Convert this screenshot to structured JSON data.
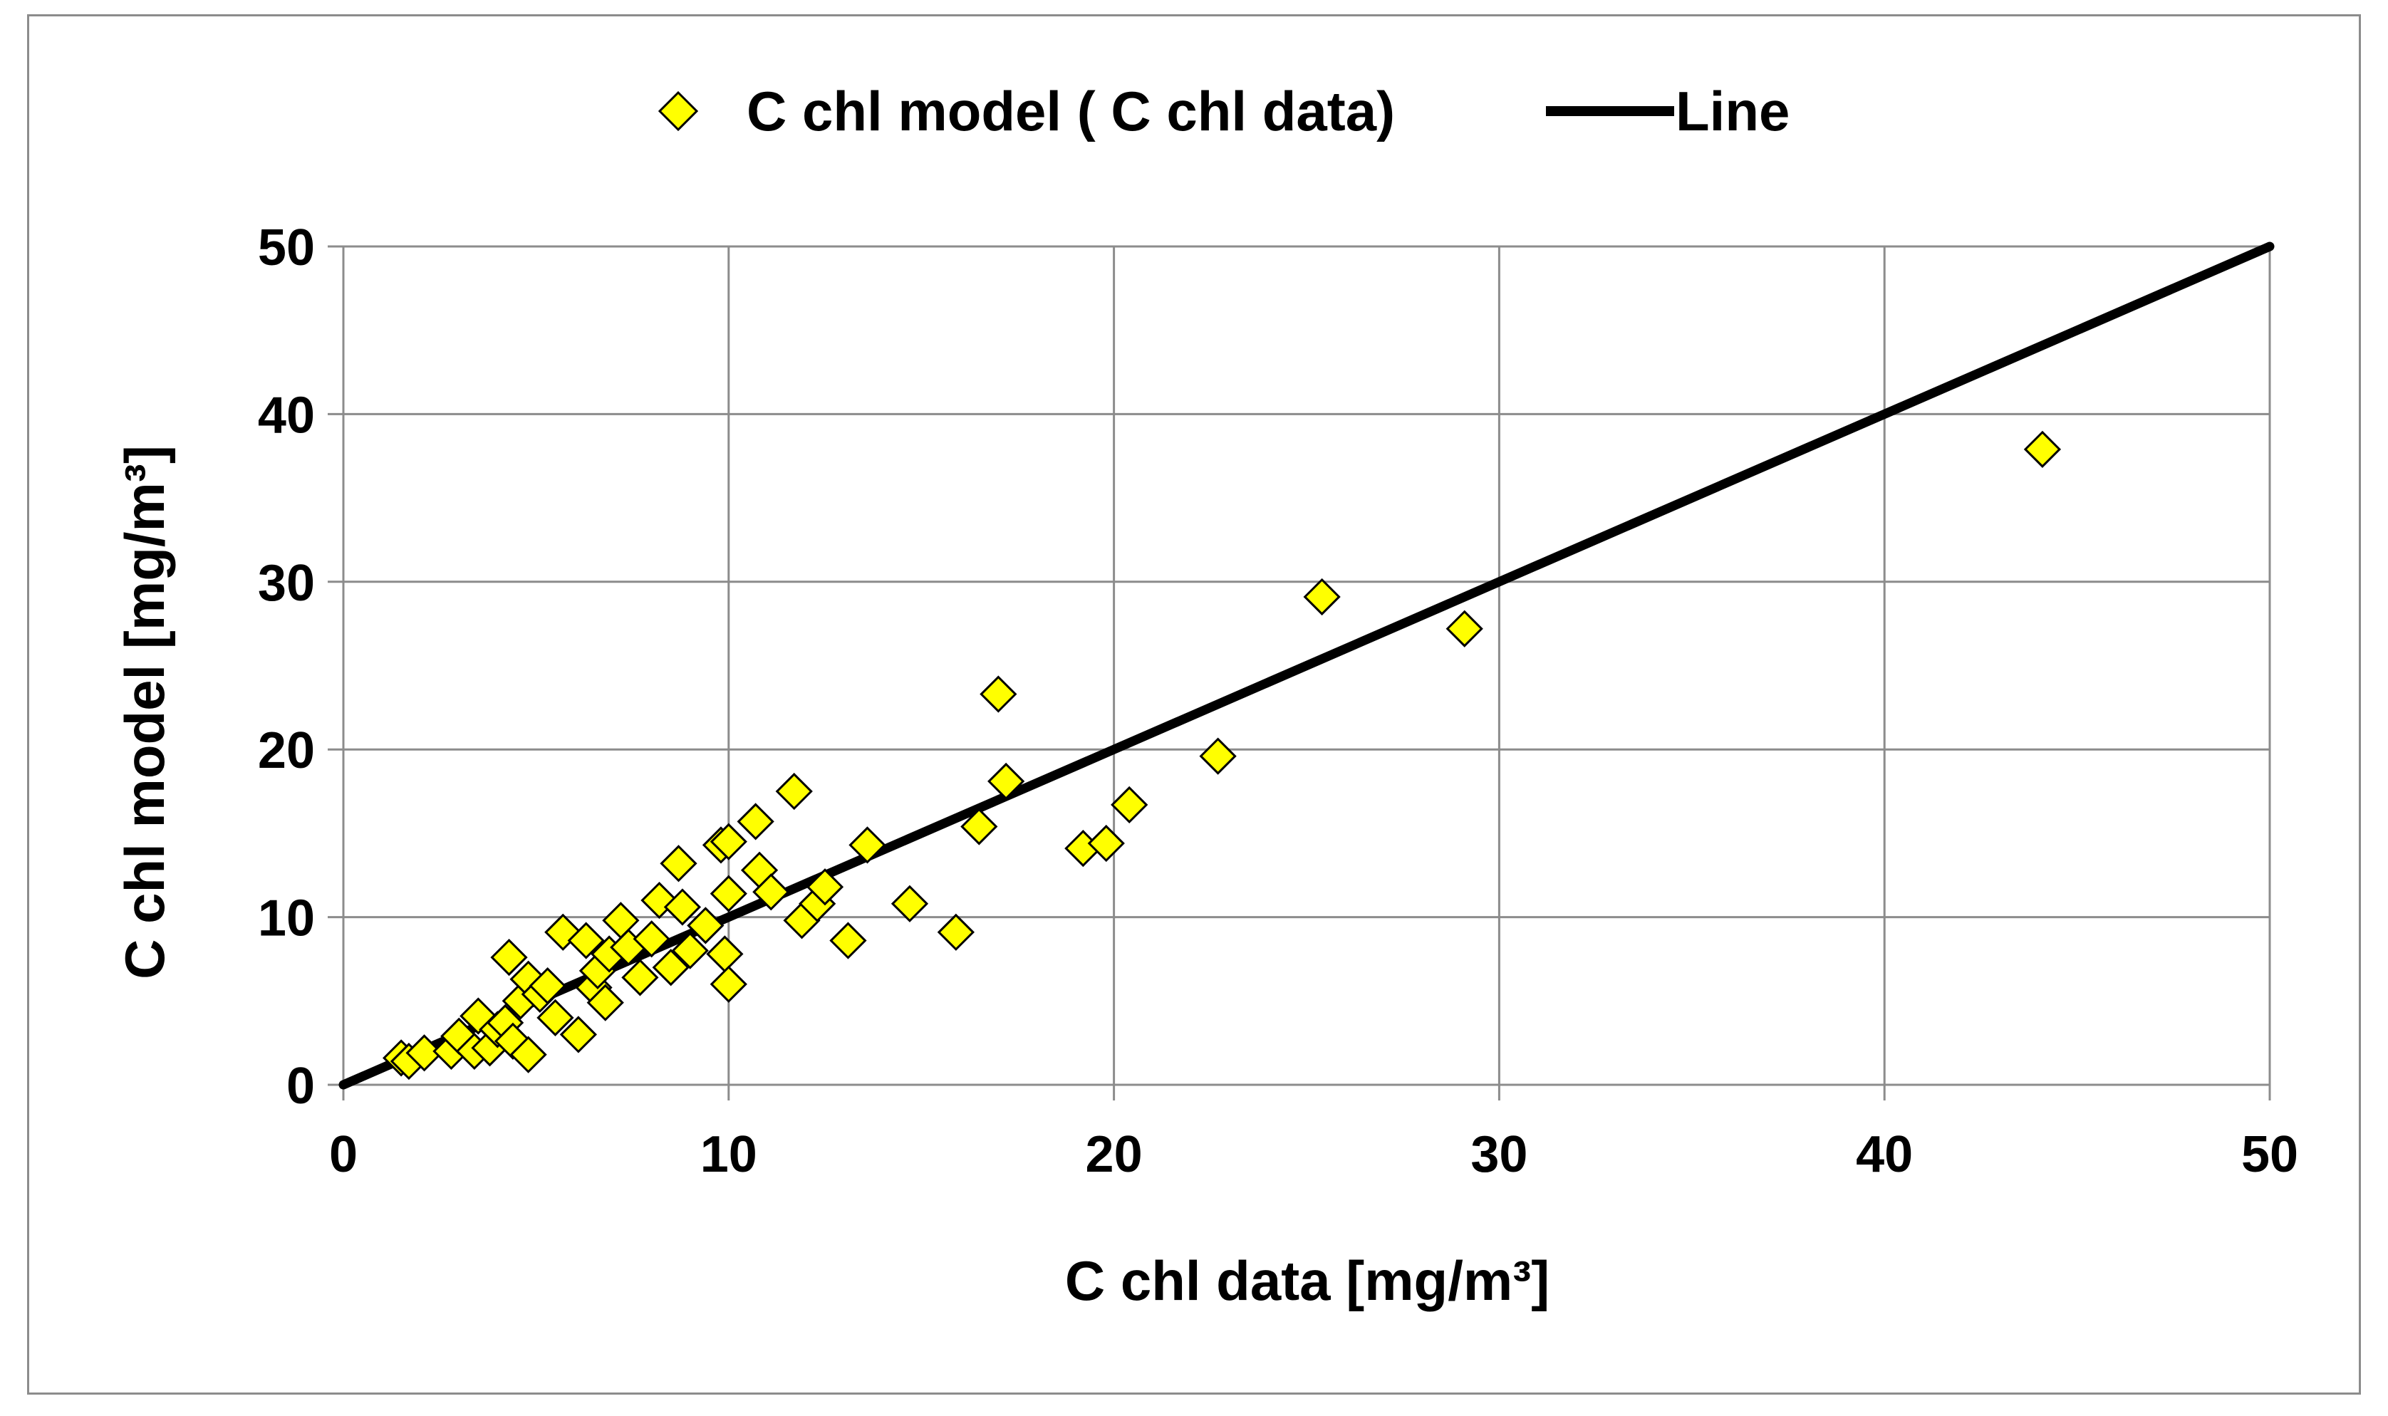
{
  "chart_data": {
    "type": "scatter",
    "title": "",
    "xlabel": "C chl data [mg/m³]",
    "ylabel": "C chl model [mg/m³]",
    "xlim": [
      0,
      50
    ],
    "ylim": [
      0,
      50
    ],
    "xticks": [
      "0",
      "10",
      "20",
      "30",
      "40",
      "50"
    ],
    "yticks": [
      "0",
      "10",
      "20",
      "30",
      "40",
      "50"
    ],
    "grid": true,
    "legend_position": "top-center",
    "colors": {
      "marker_fill": "#ffff00",
      "marker_stroke": "#000000",
      "line": "#000000",
      "grid": "#8c8c8c",
      "frame": "#8c8c8c"
    },
    "series": [
      {
        "name": "C chl model ( C chl data)",
        "kind": "scatter",
        "marker": "diamond",
        "points": [
          [
            1.5,
            1.6
          ],
          [
            1.7,
            1.4
          ],
          [
            2.1,
            1.9
          ],
          [
            2.8,
            2.0
          ],
          [
            3.0,
            2.9
          ],
          [
            3.4,
            2.0
          ],
          [
            3.5,
            4.1
          ],
          [
            3.8,
            2.2
          ],
          [
            4.0,
            3.3
          ],
          [
            4.2,
            3.7
          ],
          [
            4.3,
            7.6
          ],
          [
            4.4,
            2.6
          ],
          [
            4.6,
            5.0
          ],
          [
            4.8,
            1.8
          ],
          [
            4.8,
            6.3
          ],
          [
            5.1,
            5.4
          ],
          [
            5.3,
            5.9
          ],
          [
            5.5,
            4.0
          ],
          [
            5.7,
            9.1
          ],
          [
            6.1,
            3.0
          ],
          [
            6.3,
            8.6
          ],
          [
            6.5,
            5.8
          ],
          [
            6.6,
            6.8
          ],
          [
            6.8,
            4.9
          ],
          [
            6.9,
            7.8
          ],
          [
            7.2,
            9.8
          ],
          [
            7.4,
            8.2
          ],
          [
            7.7,
            6.4
          ],
          [
            8.0,
            8.7
          ],
          [
            8.2,
            11.0
          ],
          [
            8.5,
            7.0
          ],
          [
            8.7,
            13.2
          ],
          [
            8.8,
            10.6
          ],
          [
            9.0,
            8.0
          ],
          [
            9.4,
            9.5
          ],
          [
            9.8,
            14.3
          ],
          [
            9.9,
            7.8
          ],
          [
            10.0,
            14.5
          ],
          [
            10.0,
            11.4
          ],
          [
            10.0,
            6.0
          ],
          [
            10.7,
            15.7
          ],
          [
            10.8,
            12.8
          ],
          [
            11.1,
            11.5
          ],
          [
            11.7,
            17.5
          ],
          [
            11.9,
            9.8
          ],
          [
            12.3,
            10.8
          ],
          [
            12.5,
            11.8
          ],
          [
            13.1,
            8.6
          ],
          [
            13.6,
            14.3
          ],
          [
            14.7,
            10.8
          ],
          [
            15.9,
            9.1
          ],
          [
            16.5,
            15.4
          ],
          [
            17.0,
            23.3
          ],
          [
            17.2,
            18.1
          ],
          [
            19.2,
            14.1
          ],
          [
            19.8,
            14.4
          ],
          [
            20.4,
            16.7
          ],
          [
            22.7,
            19.6
          ],
          [
            25.4,
            29.1
          ],
          [
            29.1,
            27.2
          ],
          [
            44.1,
            37.9
          ]
        ]
      },
      {
        "name": "Line",
        "kind": "line",
        "points": [
          [
            0,
            0
          ],
          [
            50,
            50
          ]
        ]
      }
    ]
  }
}
